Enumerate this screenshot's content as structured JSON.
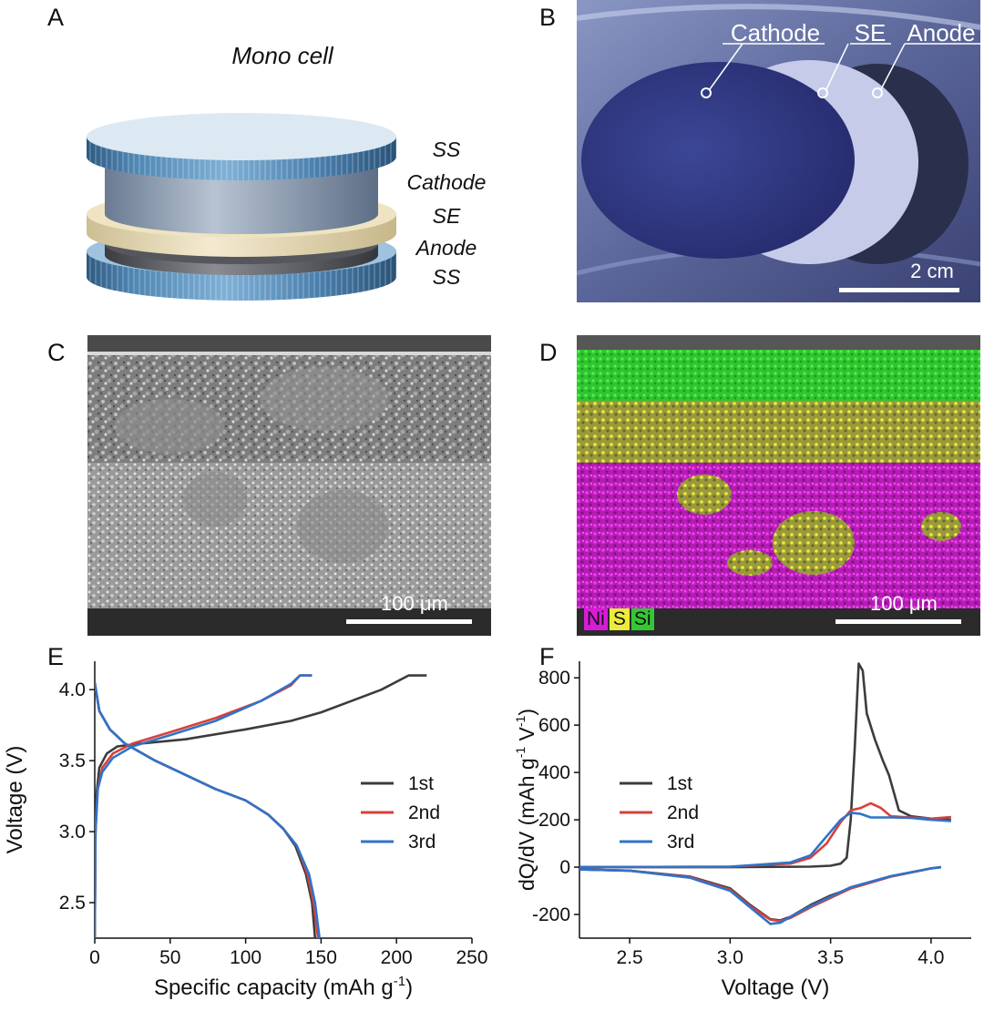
{
  "panels": {
    "a": {
      "label": "A",
      "title": "Mono cell",
      "layers": [
        "SS",
        "Cathode",
        "SE",
        "Anode",
        "SS"
      ]
    },
    "b": {
      "label": "B",
      "callouts": [
        "Cathode",
        "SE",
        "Anode"
      ],
      "scale": "2 cm"
    },
    "c": {
      "label": "C",
      "scale": "100  μm"
    },
    "d": {
      "label": "D",
      "scale": "100  μm",
      "legend": [
        {
          "text": "Ni",
          "color": "#d81bd8"
        },
        {
          "text": "S",
          "color": "#ecea3a"
        },
        {
          "text": "Si",
          "color": "#33c833"
        }
      ]
    },
    "e": {
      "label": "E"
    },
    "f": {
      "label": "F"
    }
  },
  "colors": {
    "cycle1": "#3c3c3c",
    "cycle2": "#d9403a",
    "cycle3": "#2f73c9"
  },
  "chart_data": [
    {
      "type": "line",
      "panel": "E",
      "xlabel": "Specific capacity (mAh g",
      "xlabel_sup": "-1",
      "xlabel_close": ")",
      "ylabel": "Voltage (V)",
      "xlim": [
        0,
        250
      ],
      "ylim": [
        2.25,
        4.2
      ],
      "xticks": [
        0,
        50,
        100,
        150,
        200,
        250
      ],
      "yticks": [
        2.5,
        3.0,
        3.5,
        4.0
      ],
      "legend": [
        "1st",
        "2nd",
        "3rd"
      ],
      "series": [
        {
          "name": "1st",
          "segments": [
            [
              [
                0,
                2.25
              ],
              [
                0.5,
                3.0
              ],
              [
                1,
                3.25
              ],
              [
                3,
                3.45
              ],
              [
                8,
                3.55
              ],
              [
                15,
                3.6
              ],
              [
                30,
                3.62
              ],
              [
                60,
                3.65
              ],
              [
                100,
                3.72
              ],
              [
                130,
                3.78
              ],
              [
                150,
                3.84
              ],
              [
                170,
                3.92
              ],
              [
                190,
                4.0
              ],
              [
                208,
                4.1
              ],
              [
                220,
                4.1
              ]
            ],
            [
              [
                0,
                4.05
              ],
              [
                3,
                3.85
              ],
              [
                10,
                3.72
              ],
              [
                20,
                3.62
              ],
              [
                40,
                3.5
              ],
              [
                60,
                3.4
              ],
              [
                80,
                3.3
              ],
              [
                100,
                3.22
              ],
              [
                115,
                3.12
              ],
              [
                125,
                3.02
              ],
              [
                133,
                2.9
              ],
              [
                140,
                2.7
              ],
              [
                144,
                2.5
              ],
              [
                146,
                2.25
              ]
            ]
          ]
        },
        {
          "name": "2nd",
          "segments": [
            [
              [
                0,
                2.25
              ],
              [
                0.5,
                3.0
              ],
              [
                2,
                3.3
              ],
              [
                5,
                3.45
              ],
              [
                12,
                3.55
              ],
              [
                25,
                3.62
              ],
              [
                50,
                3.7
              ],
              [
                80,
                3.8
              ],
              [
                110,
                3.92
              ],
              [
                130,
                4.03
              ],
              [
                136,
                4.1
              ],
              [
                144,
                4.1
              ]
            ],
            [
              [
                0,
                4.05
              ],
              [
                3,
                3.85
              ],
              [
                10,
                3.72
              ],
              [
                20,
                3.62
              ],
              [
                40,
                3.5
              ],
              [
                60,
                3.4
              ],
              [
                80,
                3.3
              ],
              [
                100,
                3.22
              ],
              [
                115,
                3.12
              ],
              [
                125,
                3.02
              ],
              [
                134,
                2.9
              ],
              [
                141,
                2.7
              ],
              [
                145,
                2.5
              ],
              [
                148,
                2.25
              ]
            ]
          ]
        },
        {
          "name": "3rd",
          "segments": [
            [
              [
                0,
                2.25
              ],
              [
                0.5,
                3.0
              ],
              [
                2,
                3.3
              ],
              [
                5,
                3.42
              ],
              [
                12,
                3.52
              ],
              [
                25,
                3.6
              ],
              [
                50,
                3.68
              ],
              [
                80,
                3.78
              ],
              [
                110,
                3.92
              ],
              [
                130,
                4.04
              ],
              [
                136,
                4.1
              ],
              [
                144,
                4.1
              ]
            ],
            [
              [
                0,
                4.05
              ],
              [
                3,
                3.85
              ],
              [
                10,
                3.72
              ],
              [
                20,
                3.62
              ],
              [
                40,
                3.5
              ],
              [
                60,
                3.4
              ],
              [
                80,
                3.3
              ],
              [
                100,
                3.22
              ],
              [
                115,
                3.12
              ],
              [
                125,
                3.02
              ],
              [
                134,
                2.9
              ],
              [
                142,
                2.7
              ],
              [
                146,
                2.5
              ],
              [
                149,
                2.25
              ]
            ]
          ]
        }
      ]
    },
    {
      "type": "line",
      "panel": "F",
      "xlabel": "Voltage (V)",
      "ylabel": "dQ/dV (mAh g",
      "ylabel_sup1": "-1",
      "ylabel_mid": " V",
      "ylabel_sup2": "-1",
      "ylabel_close": ")",
      "xlim": [
        2.25,
        4.2
      ],
      "ylim": [
        -300,
        870
      ],
      "xticks": [
        2.5,
        3.0,
        3.5,
        4.0
      ],
      "yticks": [
        -200,
        0,
        200,
        400,
        600,
        800
      ],
      "legend": [
        "1st",
        "2nd",
        "3rd"
      ],
      "series": [
        {
          "name": "1st",
          "segments": [
            [
              [
                2.25,
                0
              ],
              [
                3.0,
                0
              ],
              [
                3.4,
                2
              ],
              [
                3.5,
                6
              ],
              [
                3.55,
                15
              ],
              [
                3.58,
                40
              ],
              [
                3.6,
                200
              ],
              [
                3.62,
                500
              ],
              [
                3.64,
                860
              ],
              [
                3.66,
                830
              ],
              [
                3.68,
                650
              ],
              [
                3.72,
                540
              ],
              [
                3.76,
                450
              ],
              [
                3.79,
                390
              ],
              [
                3.81,
                330
              ],
              [
                3.84,
                240
              ],
              [
                3.9,
                215
              ],
              [
                4.0,
                205
              ],
              [
                4.1,
                200
              ]
            ],
            [
              [
                4.05,
                0
              ],
              [
                4.0,
                -5
              ],
              [
                3.8,
                -40
              ],
              [
                3.6,
                -90
              ],
              [
                3.5,
                -120
              ],
              [
                3.4,
                -160
              ],
              [
                3.3,
                -210
              ],
              [
                3.25,
                -225
              ],
              [
                3.2,
                -220
              ],
              [
                3.1,
                -160
              ],
              [
                3.0,
                -90
              ],
              [
                2.8,
                -40
              ],
              [
                2.5,
                -15
              ],
              [
                2.25,
                -10
              ]
            ]
          ]
        },
        {
          "name": "2nd",
          "segments": [
            [
              [
                2.25,
                0
              ],
              [
                3.0,
                2
              ],
              [
                3.3,
                15
              ],
              [
                3.4,
                40
              ],
              [
                3.48,
                100
              ],
              [
                3.55,
                190
              ],
              [
                3.6,
                240
              ],
              [
                3.65,
                250
              ],
              [
                3.7,
                270
              ],
              [
                3.75,
                250
              ],
              [
                3.8,
                215
              ],
              [
                3.9,
                210
              ],
              [
                4.0,
                205
              ],
              [
                4.1,
                212
              ]
            ],
            [
              [
                4.05,
                0
              ],
              [
                4.0,
                -5
              ],
              [
                3.8,
                -40
              ],
              [
                3.6,
                -90
              ],
              [
                3.5,
                -130
              ],
              [
                3.4,
                -170
              ],
              [
                3.3,
                -215
              ],
              [
                3.25,
                -228
              ],
              [
                3.2,
                -222
              ],
              [
                3.1,
                -165
              ],
              [
                3.0,
                -95
              ],
              [
                2.8,
                -42
              ],
              [
                2.5,
                -15
              ],
              [
                2.25,
                -10
              ]
            ]
          ]
        },
        {
          "name": "3rd",
          "segments": [
            [
              [
                2.25,
                0
              ],
              [
                3.0,
                2
              ],
              [
                3.3,
                20
              ],
              [
                3.4,
                50
              ],
              [
                3.48,
                130
              ],
              [
                3.55,
                200
              ],
              [
                3.6,
                230
              ],
              [
                3.65,
                225
              ],
              [
                3.7,
                210
              ],
              [
                3.8,
                210
              ],
              [
                3.9,
                208
              ],
              [
                4.0,
                200
              ],
              [
                4.1,
                195
              ]
            ],
            [
              [
                4.05,
                0
              ],
              [
                4.0,
                -5
              ],
              [
                3.8,
                -38
              ],
              [
                3.6,
                -85
              ],
              [
                3.5,
                -125
              ],
              [
                3.4,
                -165
              ],
              [
                3.3,
                -210
              ],
              [
                3.25,
                -235
              ],
              [
                3.2,
                -240
              ],
              [
                3.1,
                -170
              ],
              [
                3.0,
                -100
              ],
              [
                2.8,
                -45
              ],
              [
                2.5,
                -15
              ],
              [
                2.25,
                -10
              ]
            ]
          ]
        }
      ]
    }
  ]
}
